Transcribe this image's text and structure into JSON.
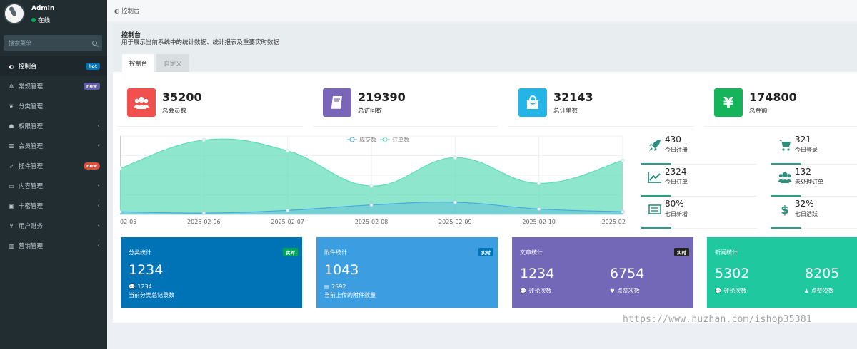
{
  "user": {
    "name": "Admin",
    "status": "在线"
  },
  "search": {
    "placeholder": "搜索菜单"
  },
  "menu": [
    {
      "label": "控制台",
      "icon": "dashboard-icon",
      "badge": "hot",
      "active": true
    },
    {
      "label": "常规管理",
      "icon": "cogs-icon",
      "badge": "new"
    },
    {
      "label": "分类管理",
      "icon": "leaf-icon"
    },
    {
      "label": "权限管理",
      "icon": "group-icon",
      "chevron": "‹"
    },
    {
      "label": "会员管理",
      "icon": "list-icon",
      "chevron": "‹"
    },
    {
      "label": "插件管理",
      "icon": "rocket-icon",
      "badge": "new"
    },
    {
      "label": "内容管理",
      "icon": "file-icon",
      "chevron": "‹"
    },
    {
      "label": "卡密管理",
      "icon": "image-icon",
      "chevron": "‹"
    },
    {
      "label": "用户财务",
      "icon": "yen-icon",
      "chevron": "‹"
    },
    {
      "label": "营销管理",
      "icon": "bar-chart-icon",
      "chevron": "‹"
    }
  ],
  "breadcrumb": "控制台",
  "panel": {
    "title": "控制台",
    "description": "用于展示当前系统中的统计数据、统计报表及重要实时数据",
    "tabs": [
      "控制台",
      "自定义"
    ]
  },
  "stats": [
    {
      "value": "35200",
      "label": "总会员数",
      "color": "#f0514f",
      "icon": "users-icon"
    },
    {
      "value": "219390",
      "label": "总访问数",
      "color": "#7a66b8",
      "icon": "book-icon"
    },
    {
      "value": "32143",
      "label": "总订单数",
      "color": "#25b4e6",
      "icon": "shopping-bag-icon"
    },
    {
      "value": "174800",
      "label": "总金额",
      "color": "#16b45a",
      "icon": "yen-icon"
    }
  ],
  "chart_data": {
    "type": "area",
    "x": [
      "2025-02-05",
      "2025-02-06",
      "2025-02-07",
      "2025-02-08",
      "2025-02-09",
      "2025-02-10",
      "2025-02-11"
    ],
    "x_tick_labels": [
      "02-05",
      "2025-02-06",
      "2025-02-07",
      "2025-02-08",
      "2025-02-09",
      "2025-02-10",
      "2025-02"
    ],
    "series": [
      {
        "name": "成交数",
        "values": [
          2,
          1,
          3,
          7,
          9,
          4,
          2
        ],
        "color": "#4aa8e0"
      },
      {
        "name": "订单数",
        "values": [
          34,
          55,
          47,
          21,
          42,
          23,
          40
        ],
        "color": "#5edcb8"
      }
    ],
    "ylim": [
      0,
      58
    ],
    "grid": true,
    "legend": "top-center"
  },
  "mini_stats": [
    {
      "value": "430",
      "label": "今日注册",
      "icon": "rocket-icon"
    },
    {
      "value": "321",
      "label": "今日登录",
      "icon": "cart-icon"
    },
    {
      "value": "2324",
      "label": "今日订单",
      "icon": "line-chart-icon"
    },
    {
      "value": "132",
      "label": "未处理订单",
      "icon": "users-icon"
    },
    {
      "value": "80%",
      "label": "七日新增",
      "icon": "list-alt-icon"
    },
    {
      "value": "32%",
      "label": "七日活跃",
      "icon": "dollar-icon"
    }
  ],
  "cards": [
    {
      "title": "分类统计",
      "tag": "实时",
      "tag_color": "#00a65a",
      "value": "1234",
      "sub_icon": "comment-icon",
      "sub_value": "1234",
      "desc": "当前分类总记录数",
      "color": "#0073b7"
    },
    {
      "title": "附件统计",
      "tag": "实时",
      "tag_color": "#0073b7",
      "value": "1043",
      "sub_icon": "files-icon",
      "sub_value": "2592",
      "desc": "当前上传的附件数量",
      "color": "#3c9ee0"
    },
    {
      "title": "文章统计",
      "tag": "实时",
      "tag_color": "#222222",
      "value1": "1234",
      "label1": "评论次数",
      "value2": "6754",
      "label2": "点赞次数",
      "color": "#7367b8"
    },
    {
      "title": "新闻统计",
      "value1": "5302",
      "label1": "评论次数",
      "value2": "8205",
      "label2": "点赞次数",
      "color": "#20c8a0"
    }
  ],
  "watermark": "https://www.huzhan.com/ishop35381"
}
